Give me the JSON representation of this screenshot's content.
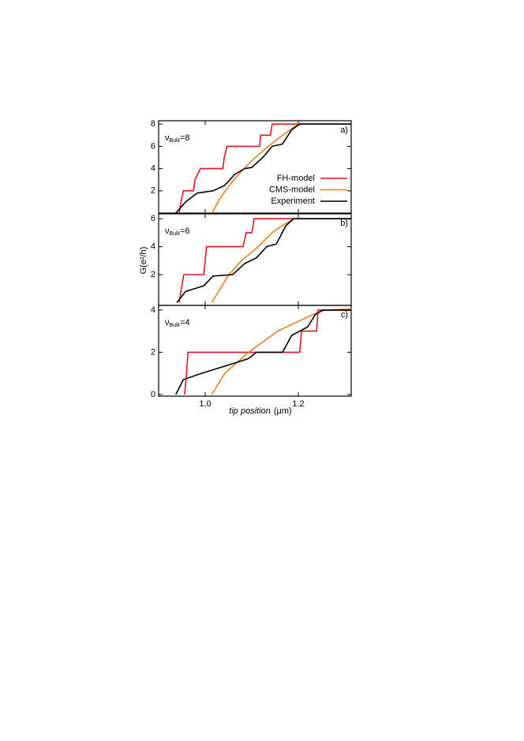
{
  "chart_data": [
    {
      "type": "line",
      "label": "a)",
      "annotation": {
        "symbol": "ν",
        "subscript": "Bulk",
        "text": "=8"
      },
      "xlim": [
        0.9,
        1.3136
      ],
      "xticks": [
        1,
        1.2
      ],
      "ylim": [
        0,
        8.3
      ],
      "yticks": [
        2,
        4,
        6,
        8
      ],
      "legend": "center-right",
      "series": [
        {
          "name": "FH-model",
          "color": "#e8141b",
          "x": [
            0.944,
            0.948,
            0.953,
            0.975,
            0.978,
            0.99,
            1.038,
            1.041,
            1.047,
            1.117,
            1.119,
            1.14,
            1.144,
            1.3136
          ],
          "values": [
            0,
            1,
            2,
            2,
            3,
            4,
            4,
            5,
            6,
            6,
            7,
            7,
            8,
            8
          ]
        },
        {
          "name": "CMS-model",
          "color": "#f07d1a",
          "x": [
            1.015,
            1.03,
            1.05,
            1.07,
            1.1,
            1.13,
            1.16,
            1.19,
            1.2,
            1.3136
          ],
          "values": [
            0,
            1.2,
            2.4,
            3.4,
            4.7,
            5.8,
            6.8,
            7.7,
            8,
            8
          ]
        },
        {
          "name": "Experiment",
          "color": "#000000",
          "x": [
            0.937,
            0.958,
            0.983,
            1.017,
            1.042,
            1.064,
            1.085,
            1.1,
            1.124,
            1.144,
            1.166,
            1.186,
            1.203,
            1.3136
          ],
          "values": [
            0,
            1,
            1.8,
            2,
            2.5,
            3.5,
            4,
            4.1,
            5,
            6,
            6.2,
            7.5,
            8,
            8
          ]
        }
      ]
    },
    {
      "type": "line",
      "label": "b)",
      "annotation": {
        "symbol": "ν",
        "subscript": "Bulk",
        "text": "=6"
      },
      "ylabel": "G(e²/h)",
      "xlim": [
        0.9,
        1.3136
      ],
      "xticks": [
        1,
        1.2
      ],
      "ylim": [
        -0.2,
        6.35
      ],
      "yticks": [
        2,
        4,
        6
      ],
      "series": [
        {
          "color": "#e8141b",
          "x": [
            0.944,
            0.949,
            0.954,
            0.997,
            1.0,
            1.003,
            1.081,
            1.085,
            1.088,
            1.1,
            1.103,
            1.105,
            1.3136
          ],
          "values": [
            0,
            1,
            2,
            2,
            3,
            4,
            4,
            4.5,
            5,
            5,
            5.5,
            6,
            6
          ]
        },
        {
          "color": "#f07d1a",
          "x": [
            1.014,
            1.051,
            1.078,
            1.114,
            1.144,
            1.17,
            1.192,
            1.3136
          ],
          "values": [
            0,
            2,
            3,
            4,
            5,
            5.6,
            6,
            6
          ]
        },
        {
          "color": "#000000",
          "x": [
            0.939,
            0.958,
            0.997,
            1.017,
            1.059,
            1.085,
            1.11,
            1.132,
            1.153,
            1.173,
            1.19,
            1.3136
          ],
          "values": [
            0,
            0.8,
            1.2,
            1.9,
            2,
            2.8,
            3.2,
            4,
            4.2,
            5.5,
            6,
            6
          ]
        }
      ]
    },
    {
      "type": "line",
      "label": "c)",
      "annotation": {
        "symbol": "ν",
        "subscript": "Bulk",
        "text": "=4"
      },
      "xlabel": [
        "tip position",
        "(µm)"
      ],
      "xlim": [
        0.9,
        1.3136
      ],
      "xticks": [
        {
          "value": 1,
          "label": "1.0"
        },
        1.2
      ],
      "ylim": [
        -0.08,
        4.22
      ],
      "yticks": [
        0,
        2,
        4
      ],
      "series": [
        {
          "color": "#e8141b",
          "x": [
            0.956,
            0.96,
            0.963,
            1.203,
            1.205,
            1.207,
            1.239,
            1.241,
            1.242,
            1.3136
          ],
          "values": [
            0,
            1,
            2,
            2,
            2.5,
            3,
            3,
            3.5,
            4,
            4
          ]
        },
        {
          "color": "#f07d1a",
          "x": [
            1.014,
            1.042,
            1.093,
            1.156,
            1.203,
            1.254,
            1.3136
          ],
          "values": [
            0,
            1,
            2,
            3,
            3.5,
            4,
            4.05
          ]
        },
        {
          "color": "#000000",
          "x": [
            0.937,
            0.953,
            0.992,
            1.051,
            1.093,
            1.11,
            1.166,
            1.186,
            1.22,
            1.237,
            1.254,
            1.3136
          ],
          "values": [
            0,
            0.7,
            1,
            1.4,
            1.7,
            2,
            2,
            2.8,
            3.2,
            3.8,
            4,
            4
          ]
        }
      ]
    }
  ]
}
